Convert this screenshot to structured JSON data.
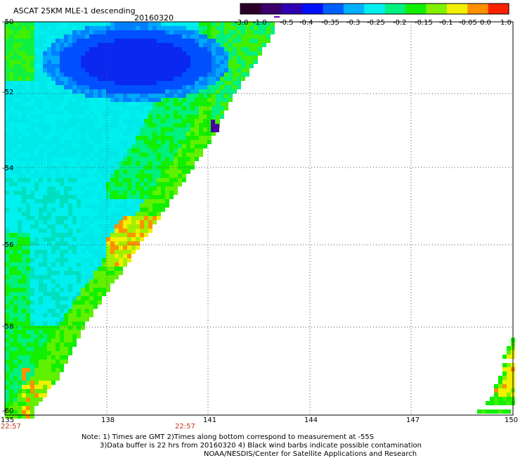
{
  "header": {
    "title": "ASCAT 25KM MLE-1 descending",
    "date": "20160320"
  },
  "colorbar": {
    "labels": [
      "-3.0",
      "-1.0",
      "-0.5",
      "-0.4",
      "-0.35",
      "-0.3",
      "-0.25",
      "-0.2",
      "-0.15",
      "-0.1",
      "-0.05",
      "0.0",
      "1.0"
    ],
    "colors": [
      "#2a0028",
      "#3a006a",
      "#2e00b4",
      "#0010ff",
      "#0060ff",
      "#00b0ff",
      "#00f0f0",
      "#00f080",
      "#10f000",
      "#80f000",
      "#f0f000",
      "#ff9000",
      "#ff2000"
    ]
  },
  "axes": {
    "x_ticks": [
      "135",
      "138",
      "141",
      "144",
      "147",
      "150"
    ],
    "y_ticks": [
      "-50",
      "-52",
      "-54",
      "-56",
      "-58",
      "-60"
    ],
    "time_labels": [
      "22:57",
      "22:57"
    ],
    "xlim": [
      135,
      150
    ],
    "ylim": [
      -60,
      -50
    ]
  },
  "footer": {
    "line1": "Note: 1) Times are GMT 2)Times along bottom correspond to measurement at -55S",
    "line2": "3)Data buffer is 22 hrs from 20160320 4) Black wind barbs indicate possible contamination",
    "line3": "NOAA/NESDIS/Center for Satellite Applications and Research"
  }
}
